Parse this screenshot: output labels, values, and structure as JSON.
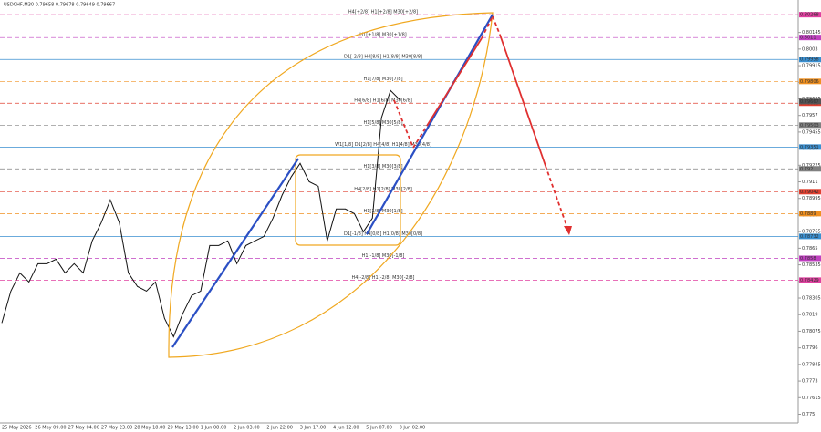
{
  "chart_data": {
    "type": "line",
    "title": "USDCHF,M30 0.79658 0.79678 0.79649 0.79667",
    "color": "#111111",
    "x_tick_labels": [
      "25 May 2026",
      "26 May 09:00",
      "27 May 04:00",
      "27 May 23:00",
      "28 May 18:00",
      "29 May 13:00",
      "1 Jun 08:00",
      "2 Jun 03:00",
      "2 Jun 22:00",
      "3 Jun 17:00",
      "4 Jun 12:00",
      "5 Jun 07:00",
      "8 Jun 02:00"
    ],
    "values": [
      0.78132,
      0.78353,
      0.78479,
      0.78416,
      0.78543,
      0.78543,
      0.78574,
      0.78479,
      0.78543,
      0.78479,
      0.78701,
      0.78827,
      0.78985,
      0.78827,
      0.78479,
      0.78385,
      0.78353,
      0.78416,
      0.78164,
      0.78037,
      0.78195,
      0.78322,
      0.78353,
      0.78669,
      0.78669,
      0.78701,
      0.78543,
      0.78669,
      0.78701,
      0.78732,
      0.78859,
      0.79017,
      0.79143,
      0.79238,
      0.79111,
      0.7908,
      0.78701,
      0.78922,
      0.78922,
      0.7889,
      0.78764,
      0.78859,
      0.79554,
      0.79743,
      0.7968
    ],
    "ylim": [
      0.7744,
      0.8037
    ],
    "yticks": [
      0.775,
      0.77615,
      0.7773,
      0.77845,
      0.7796,
      0.78075,
      0.7819,
      0.78305,
      0.7842,
      0.78535,
      0.7865,
      0.78765,
      0.7888,
      0.78995,
      0.7911,
      0.79225,
      0.7934,
      0.79455,
      0.7957,
      0.79685,
      0.798,
      0.79915,
      0.8003,
      0.80145
    ],
    "levels": [
      {
        "label": "H4[+2/8] H1[+2/8] M30[+2/8]",
        "price": 0.80268,
        "color": "#e040a0",
        "dash": true
      },
      {
        "label": "H1[+1/8] M30[+1/8]",
        "price": 0.8011,
        "color": "#c040c0",
        "dash": true
      },
      {
        "label": "D1[-2/8] H4[8/8] H1[8/8] M30[8/8]",
        "price": 0.79958,
        "color": "#3a8fd0",
        "dash": false
      },
      {
        "label": "H1[7/8] M30[7/8]",
        "price": 0.79806,
        "color": "#f09020",
        "dash": true
      },
      {
        "label": "H4[6/8] H1[6/8] M30[6/8]",
        "price": 0.79655,
        "color": "#e04030",
        "dash": true
      },
      {
        "label": "H1[5/8] M30[5/8]",
        "price": 0.79503,
        "color": "#808080",
        "dash": true
      },
      {
        "label": "W1[1/8] D1[2/8] H4[4/8] H1[4/8] M30[4/8]",
        "price": 0.79351,
        "color": "#3a8fd0",
        "dash": false
      },
      {
        "label": "H1[3/8] M30[3/8]",
        "price": 0.792,
        "color": "#808080",
        "dash": true
      },
      {
        "label": "H4[2/8] H1[2/8] M30[2/8]",
        "price": 0.79042,
        "color": "#e04030",
        "dash": true
      },
      {
        "label": "H1[1/8] M30[1/8]",
        "price": 0.7889,
        "color": "#f09020",
        "dash": true
      },
      {
        "label": "D1[-1/8] H4[0/8] H1[0/8] M30[0/8]",
        "price": 0.78732,
        "color": "#3a8fd0",
        "dash": false
      },
      {
        "label": "H1[-1/8] M30[-1/8]",
        "price": 0.7858,
        "color": "#c040c0",
        "dash": true
      },
      {
        "label": "H4[-2/8] H1[-2/8] M30[-2/8]",
        "price": 0.78429,
        "color": "#e040a0",
        "dash": true
      }
    ],
    "current_price": 0.79667
  }
}
